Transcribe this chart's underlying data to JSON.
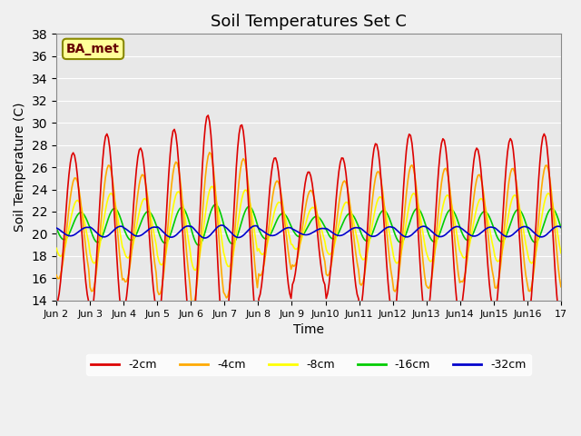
{
  "title": "Soil Temperatures Set C",
  "xlabel": "Time",
  "ylabel": "Soil Temperature (C)",
  "ylim": [
    14,
    38
  ],
  "yticks": [
    14,
    16,
    18,
    20,
    22,
    24,
    26,
    28,
    30,
    32,
    34,
    36,
    38
  ],
  "line_colors": {
    "-2cm": "#dd0000",
    "-4cm": "#ffaa00",
    "-8cm": "#ffff00",
    "-16cm": "#00cc00",
    "-32cm": "#0000cc"
  },
  "annotation_text": "BA_met",
  "annotation_bg": "#ffff99",
  "annotation_border": "#888800",
  "background_color": "#e8e8e8",
  "plot_bg": "#e8e8e8",
  "legend_colors": [
    "#dd0000",
    "#ffaa00",
    "#ffff00",
    "#00cc00",
    "#0000cc"
  ],
  "legend_labels": [
    "-2cm",
    "-4cm",
    "-8cm",
    "-16cm",
    "-32cm"
  ],
  "title_fontsize": 13,
  "axis_fontsize": 10
}
